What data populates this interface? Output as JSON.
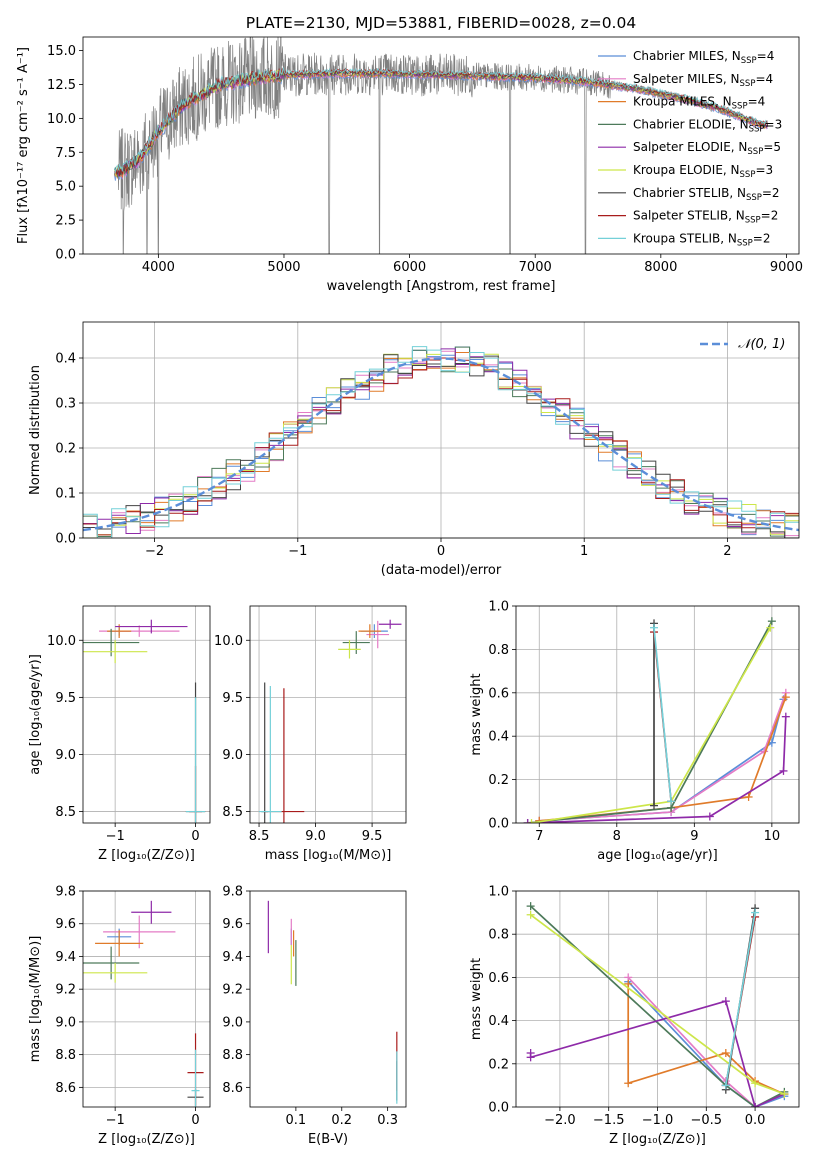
{
  "colors": {
    "Chabrier MILES": "#5b8ed8",
    "Salpeter MILES": "#e47cc6",
    "Kroupa MILES": "#e07b2a",
    "Chabrier ELODIE": "#4d7a5a",
    "Salpeter ELODIE": "#8e2aa8",
    "Kroupa ELODIE": "#cde64a",
    "Chabrier STELIB": "#444444",
    "Salpeter STELIB": "#a81c1c",
    "Kroupa STELIB": "#74d0d8",
    "spectrum": "#808080",
    "normal": "#5b8ed8"
  },
  "chart_data": [
    {
      "type": "line",
      "title": "PLATE=2130, MJD=53881, FIBERID=0028, z=0.04",
      "xlabel": "wavelength [Angstrom, rest frame]",
      "ylabel": "Flux [fλ10⁻¹⁷ erg cm⁻² s⁻¹ A⁻¹]",
      "xlim": [
        3400,
        9100
      ],
      "ylim": [
        0,
        16
      ],
      "xticks": [
        "4000",
        "5000",
        "6000",
        "7000",
        "8000",
        "9000"
      ],
      "yticks": [
        "0.0",
        "2.5",
        "5.0",
        "7.5",
        "10.0",
        "12.5",
        "15.0"
      ],
      "legend": [
        [
          "Chabrier MILES, N",
          "SSP",
          "=4"
        ],
        [
          "Salpeter MILES, N",
          "SSP",
          "=4"
        ],
        [
          "Kroupa MILES, N",
          "SSP",
          "=4"
        ],
        [
          "Chabrier ELODIE, N",
          "SSP",
          "=3"
        ],
        [
          "Salpeter ELODIE, N",
          "SSP",
          "=5"
        ],
        [
          "Kroupa ELODIE, N",
          "SSP",
          "=3"
        ],
        [
          "Chabrier STELIB, N",
          "SSP",
          "=2"
        ],
        [
          "Salpeter STELIB, N",
          "SSP",
          "=2"
        ],
        [
          "Kroupa STELIB, N",
          "SSP",
          "=2"
        ]
      ],
      "legend_loc": "upper right",
      "continuum_x": [
        3700,
        3850,
        4000,
        4200,
        4500,
        4800,
        5000,
        5400,
        5800,
        6200,
        6600,
        7000,
        7400,
        7800,
        8200,
        8500,
        8800
      ],
      "continuum_y": [
        6.0,
        7.0,
        9.0,
        11.0,
        12.5,
        13.0,
        13.2,
        13.3,
        13.3,
        13.2,
        13.1,
        13.0,
        12.7,
        12.2,
        11.4,
        10.6,
        9.5
      ],
      "model_range": [
        3650,
        8850
      ],
      "masked_drops": [
        3720,
        3910,
        4000,
        5360,
        5760,
        6800,
        7400
      ],
      "grid": false
    },
    {
      "type": "histogram",
      "xlabel": "(data-model)/error",
      "ylabel": "Normed distribution",
      "xlim": [
        -2.5,
        2.5
      ],
      "ylim": [
        0,
        0.48
      ],
      "xticks": [
        "−2",
        "−1",
        "0",
        "1",
        "2"
      ],
      "yticks": [
        "0.0",
        "0.1",
        "0.2",
        "0.3",
        "0.4"
      ],
      "legend": "𝒩(0, 1)",
      "legend_loc": "upper right",
      "bin_width": 0.1,
      "bin_start": -2.5,
      "bins": 50,
      "grid": true
    },
    {
      "type": "errorbar",
      "xlabel": "Z [log₁₀(Z/Z⊙)]",
      "ylabel": "age  [log₁₀(age/yr)]",
      "xlim": [
        -1.4,
        0.18
      ],
      "ylim": [
        8.4,
        10.3
      ],
      "xticks": [
        "−1",
        "0"
      ],
      "yticks": [
        "8.5",
        "9.0",
        "9.5",
        "10.0"
      ],
      "grid": true,
      "points": [
        {
          "s": "Chabrier MILES",
          "x": -0.95,
          "y": 10.08,
          "xe": 0.15,
          "ye": 0.04
        },
        {
          "s": "Salpeter MILES",
          "x": -0.7,
          "y": 10.08,
          "xe": 0.5,
          "ye": 0.05
        },
        {
          "s": "Kroupa MILES",
          "x": -0.95,
          "y": 10.08,
          "xe": 0.15,
          "ye": 0.06
        },
        {
          "s": "Chabrier ELODIE",
          "x": -1.05,
          "y": 9.98,
          "xe": 0.35,
          "ye": 0.12
        },
        {
          "s": "Salpeter ELODIE",
          "x": -0.55,
          "y": 10.12,
          "xe": 0.45,
          "ye": 0.06
        },
        {
          "s": "Kroupa ELODIE",
          "x": -1.0,
          "y": 9.9,
          "xe": 0.4,
          "ye": 0.1
        },
        {
          "s": "Chabrier STELIB",
          "x": 0.0,
          "y": 8.5,
          "xe": 0.12,
          "ye": 1.13
        },
        {
          "s": "Salpeter STELIB",
          "x": 0.0,
          "y": 8.5,
          "xe": 0.08,
          "ye": 0.4
        },
        {
          "s": "Kroupa STELIB",
          "x": 0.0,
          "y": 8.5,
          "xe": 0.12,
          "ye": 1.0
        }
      ]
    },
    {
      "type": "errorbar",
      "xlabel": "mass [log₁₀(M/M⊙)]",
      "ylabel": "",
      "xlim": [
        8.42,
        9.8
      ],
      "ylim": [
        8.4,
        10.3
      ],
      "xticks": [
        "8.5",
        "9.0",
        "9.5"
      ],
      "yticks": [
        "8.5",
        "9.0",
        "9.5",
        "10.0"
      ],
      "grid": true,
      "points": [
        {
          "s": "Chabrier MILES",
          "x": 9.52,
          "y": 10.08,
          "xe": 0.12,
          "ye": 0.06
        },
        {
          "s": "Salpeter MILES",
          "x": 9.55,
          "y": 10.05,
          "xe": 0.1,
          "ye": 0.12
        },
        {
          "s": "Kroupa MILES",
          "x": 9.48,
          "y": 10.08,
          "xe": 0.1,
          "ye": 0.06
        },
        {
          "s": "Chabrier ELODIE",
          "x": 9.36,
          "y": 9.98,
          "xe": 0.12,
          "ye": 0.1
        },
        {
          "s": "Salpeter ELODIE",
          "x": 9.66,
          "y": 10.14,
          "xe": 0.1,
          "ye": 0.04
        },
        {
          "s": "Kroupa ELODIE",
          "x": 9.3,
          "y": 9.92,
          "xe": 0.1,
          "ye": 0.08
        },
        {
          "s": "Chabrier STELIB",
          "x": 8.55,
          "y": 8.5,
          "xe": 0.03,
          "ye": 1.13
        },
        {
          "s": "Salpeter STELIB",
          "x": 8.72,
          "y": 8.5,
          "xe": 0.18,
          "ye": 1.08
        },
        {
          "s": "Kroupa STELIB",
          "x": 8.6,
          "y": 8.5,
          "xe": 0.1,
          "ye": 1.1
        }
      ]
    },
    {
      "type": "line",
      "xlabel": "age  [log₁₀(age/yr)]",
      "ylabel": "mass weight",
      "xlim": [
        6.7,
        10.35
      ],
      "ylim": [
        0,
        1
      ],
      "xticks": [
        "7",
        "8",
        "9",
        "10"
      ],
      "yticks": [
        "0.0",
        "0.2",
        "0.4",
        "0.6",
        "0.8",
        "1.0"
      ],
      "grid": true,
      "series": [
        {
          "s": "Chabrier MILES",
          "x": [
            7.0,
            8.7,
            10.0,
            10.15
          ],
          "y": [
            0.01,
            0.05,
            0.37,
            0.57
          ]
        },
        {
          "s": "Salpeter MILES",
          "x": [
            7.0,
            8.7,
            9.9,
            10.18
          ],
          "y": [
            0.01,
            0.05,
            0.33,
            0.6
          ]
        },
        {
          "s": "Kroupa MILES",
          "x": [
            7.0,
            8.7,
            9.7,
            10.18
          ],
          "y": [
            0.01,
            0.07,
            0.12,
            0.58
          ]
        },
        {
          "s": "Chabrier ELODIE",
          "x": [
            6.85,
            8.7,
            10.0
          ],
          "y": [
            0.0,
            0.07,
            0.93
          ]
        },
        {
          "s": "Salpeter ELODIE",
          "x": [
            6.85,
            9.2,
            10.15,
            10.18
          ],
          "y": [
            0.0,
            0.03,
            0.24,
            0.49
          ]
        },
        {
          "s": "Kroupa ELODIE",
          "x": [
            6.9,
            8.7,
            9.98
          ],
          "y": [
            0.0,
            0.1,
            0.9
          ]
        },
        {
          "s": "Chabrier STELIB",
          "x": [
            8.48,
            8.48
          ],
          "y": [
            0.92,
            0.08
          ]
        },
        {
          "s": "Salpeter STELIB",
          "x": [
            8.48,
            8.7
          ],
          "y": [
            0.88,
            0.1
          ]
        },
        {
          "s": "Kroupa STELIB",
          "x": [
            8.48,
            8.7
          ],
          "y": [
            0.9,
            0.1
          ]
        }
      ]
    },
    {
      "type": "errorbar",
      "xlabel": "Z [log₁₀(Z/Z⊙)]",
      "ylabel": "mass [log₁₀(M/M⊙)]",
      "xlim": [
        -1.4,
        0.18
      ],
      "ylim": [
        8.48,
        9.8
      ],
      "xticks": [
        "−1",
        "0"
      ],
      "yticks": [
        "8.6",
        "8.8",
        "9.0",
        "9.2",
        "9.4",
        "9.6",
        "9.8"
      ],
      "grid": true,
      "points": [
        {
          "s": "Chabrier MILES",
          "x": -0.95,
          "y": 9.52,
          "xe": 0.15,
          "ye": 0.05
        },
        {
          "s": "Salpeter MILES",
          "x": -0.7,
          "y": 9.55,
          "xe": 0.45,
          "ye": 0.1
        },
        {
          "s": "Kroupa MILES",
          "x": -0.95,
          "y": 9.48,
          "xe": 0.3,
          "ye": 0.08
        },
        {
          "s": "Chabrier ELODIE",
          "x": -1.05,
          "y": 9.36,
          "xe": 0.35,
          "ye": 0.1
        },
        {
          "s": "Salpeter ELODIE",
          "x": -0.55,
          "y": 9.67,
          "xe": 0.25,
          "ye": 0.07
        },
        {
          "s": "Kroupa ELODIE",
          "x": -1.0,
          "y": 9.3,
          "xe": 0.4,
          "ye": 0.06
        },
        {
          "s": "Chabrier STELIB",
          "x": 0.0,
          "y": 8.54,
          "xe": 0.1,
          "ye": 0.05
        },
        {
          "s": "Salpeter STELIB",
          "x": 0.0,
          "y": 8.69,
          "xe": 0.1,
          "ye": 0.24
        },
        {
          "s": "Kroupa STELIB",
          "x": 0.0,
          "y": 8.58,
          "xe": 0.05,
          "ye": 0.25
        }
      ]
    },
    {
      "type": "errorbar",
      "xlabel": "E(B-V)",
      "ylabel": "",
      "xlim": [
        0.0,
        0.34
      ],
      "ylim": [
        8.48,
        9.8
      ],
      "xticks": [
        "0.1",
        "0.2",
        "0.3"
      ],
      "yticks": [
        "8.6",
        "8.8",
        "9.0",
        "9.2",
        "9.4",
        "9.6",
        "9.8"
      ],
      "grid": false,
      "points": [
        {
          "s": "Chabrier MILES",
          "x": 0.09,
          "y": 9.52,
          "xe": 0.0,
          "ye": 0.05
        },
        {
          "s": "Salpeter MILES",
          "x": 0.09,
          "y": 9.55,
          "xe": 0.0,
          "ye": 0.08
        },
        {
          "s": "Kroupa MILES",
          "x": 0.095,
          "y": 9.48,
          "xe": 0.0,
          "ye": 0.08
        },
        {
          "s": "Chabrier ELODIE",
          "x": 0.1,
          "y": 9.36,
          "xe": 0.0,
          "ye": 0.14
        },
        {
          "s": "Salpeter ELODIE",
          "x": 0.04,
          "y": 9.58,
          "xe": 0.0,
          "ye": 0.16
        },
        {
          "s": "Kroupa ELODIE",
          "x": 0.09,
          "y": 9.35,
          "xe": 0.0,
          "ye": 0.12
        },
        {
          "s": "Chabrier STELIB",
          "x": 0.32,
          "y": 8.64,
          "xe": 0.0,
          "ye": 0.12
        },
        {
          "s": "Salpeter STELIB",
          "x": 0.32,
          "y": 8.76,
          "xe": 0.0,
          "ye": 0.18
        },
        {
          "s": "Kroupa STELIB",
          "x": 0.32,
          "y": 8.66,
          "xe": 0.0,
          "ye": 0.16
        }
      ]
    },
    {
      "type": "line",
      "xlabel": "Z [log₁₀(Z/Z⊙)]",
      "ylabel": "mass weight",
      "xlim": [
        -2.45,
        0.45
      ],
      "ylim": [
        0,
        1
      ],
      "xticks": [
        "−2.0",
        "−1.5",
        "−1.0",
        "−0.5",
        "0.0"
      ],
      "yticks": [
        "0.0",
        "0.2",
        "0.4",
        "0.6",
        "0.8",
        "1.0"
      ],
      "grid": true,
      "series": [
        {
          "s": "Chabrier MILES",
          "x": [
            -1.3,
            -0.3,
            0.0,
            0.3
          ],
          "y": [
            0.58,
            0.1,
            0.0,
            0.05
          ]
        },
        {
          "s": "Salpeter MILES",
          "x": [
            -1.3,
            -0.3,
            0.0,
            0.3
          ],
          "y": [
            0.6,
            0.12,
            0.0,
            0.06
          ]
        },
        {
          "s": "Kroupa MILES",
          "x": [
            -1.3,
            -1.3,
            -0.3,
            0.0,
            0.3
          ],
          "y": [
            0.57,
            0.11,
            0.25,
            0.12,
            0.06
          ]
        },
        {
          "s": "Chabrier ELODIE",
          "x": [
            -2.3,
            -0.3,
            0.0,
            0.3
          ],
          "y": [
            0.93,
            0.1,
            0.0,
            0.07
          ]
        },
        {
          "s": "Salpeter ELODIE",
          "x": [
            -2.3,
            -2.3,
            -0.3,
            0.0,
            0.3
          ],
          "y": [
            0.25,
            0.23,
            0.49,
            0.0,
            0.06
          ]
        },
        {
          "s": "Kroupa ELODIE",
          "x": [
            -2.3,
            0.0,
            0.3
          ],
          "y": [
            0.89,
            0.11,
            0.06
          ]
        },
        {
          "s": "Chabrier STELIB",
          "x": [
            -0.3,
            0.0
          ],
          "y": [
            0.08,
            0.92
          ]
        },
        {
          "s": "Salpeter STELIB",
          "x": [
            -0.3,
            0.0
          ],
          "y": [
            0.1,
            0.88
          ]
        },
        {
          "s": "Kroupa STELIB",
          "x": [
            -0.3,
            0.0
          ],
          "y": [
            0.1,
            0.9
          ]
        }
      ]
    }
  ]
}
